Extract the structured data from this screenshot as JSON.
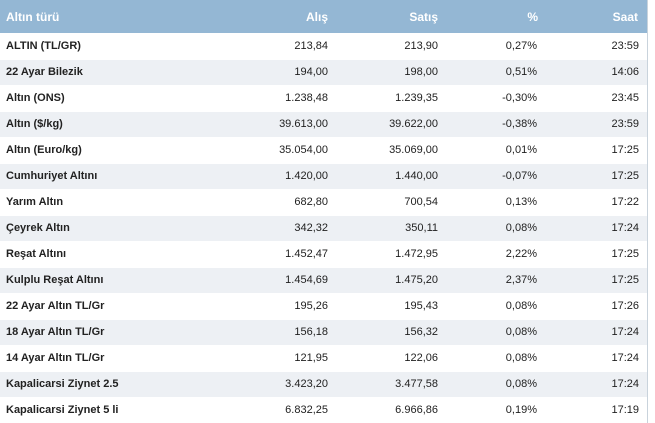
{
  "table": {
    "headers": {
      "name": "Altın türü",
      "alis": "Alış",
      "satis": "Satış",
      "pct": "%",
      "saat": "Saat"
    },
    "rows": [
      {
        "name": "ALTIN (TL/GR)",
        "alis": "213,84",
        "satis": "213,90",
        "pct": "0,27%",
        "saat": "23:59"
      },
      {
        "name": "22 Ayar Bilezik",
        "alis": "194,00",
        "satis": "198,00",
        "pct": "0,51%",
        "saat": "14:06"
      },
      {
        "name": "Altın (ONS)",
        "alis": "1.238,48",
        "satis": "1.239,35",
        "pct": "-0,30%",
        "saat": "23:45"
      },
      {
        "name": "Altın ($/kg)",
        "alis": "39.613,00",
        "satis": "39.622,00",
        "pct": "-0,38%",
        "saat": "23:59"
      },
      {
        "name": "Altın (Euro/kg)",
        "alis": "35.054,00",
        "satis": "35.069,00",
        "pct": "0,01%",
        "saat": "17:25"
      },
      {
        "name": "Cumhuriyet Altını",
        "alis": "1.420,00",
        "satis": "1.440,00",
        "pct": "-0,07%",
        "saat": "17:25"
      },
      {
        "name": "Yarım Altın",
        "alis": "682,80",
        "satis": "700,54",
        "pct": "0,13%",
        "saat": "17:22"
      },
      {
        "name": "Çeyrek Altın",
        "alis": "342,32",
        "satis": "350,11",
        "pct": "0,08%",
        "saat": "17:24"
      },
      {
        "name": "Reşat Altını",
        "alis": "1.452,47",
        "satis": "1.472,95",
        "pct": "2,22%",
        "saat": "17:25"
      },
      {
        "name": "Kulplu Reşat Altını",
        "alis": "1.454,69",
        "satis": "1.475,20",
        "pct": "2,37%",
        "saat": "17:25"
      },
      {
        "name": "22 Ayar Altın TL/Gr",
        "alis": "195,26",
        "satis": "195,43",
        "pct": "0,08%",
        "saat": "17:26"
      },
      {
        "name": "18 Ayar Altın TL/Gr",
        "alis": "156,18",
        "satis": "156,32",
        "pct": "0,08%",
        "saat": "17:24"
      },
      {
        "name": "14 Ayar Altın TL/Gr",
        "alis": "121,95",
        "satis": "122,06",
        "pct": "0,08%",
        "saat": "17:24"
      },
      {
        "name": "Kapalicarsi Ziynet 2.5",
        "alis": "3.423,20",
        "satis": "3.477,58",
        "pct": "0,08%",
        "saat": "17:24"
      },
      {
        "name": "Kapalicarsi Ziynet 5 li",
        "alis": "6.832,25",
        "satis": "6.966,86",
        "pct": "0,19%",
        "saat": "17:19"
      }
    ]
  },
  "colors": {
    "header_bg": "#94b7d4",
    "row_alt_bg": "#edf0f4",
    "text": "#1e1e1e"
  }
}
